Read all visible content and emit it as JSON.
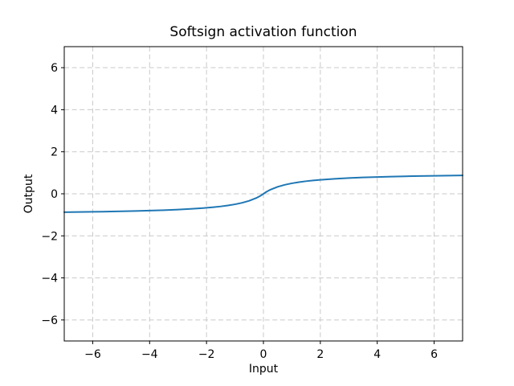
{
  "chart_data": {
    "type": "line",
    "title": "Softsign activation function",
    "xlabel": "Input",
    "ylabel": "Output",
    "xlim": [
      -7,
      7
    ],
    "ylim": [
      -7,
      7
    ],
    "xticks": [
      -6,
      -4,
      -2,
      0,
      2,
      4,
      6
    ],
    "xtick_labels": [
      "−6",
      "−4",
      "−2",
      "0",
      "2",
      "4",
      "6"
    ],
    "yticks": [
      -6,
      -4,
      -2,
      0,
      2,
      4,
      6
    ],
    "ytick_labels": [
      "−6",
      "−4",
      "−2",
      "0",
      "2",
      "4",
      "6"
    ],
    "grid": true,
    "grid_linestyle": "dashed",
    "grid_color": "#c9c9c9",
    "spine_color": "#000000",
    "line_color": "#1f77b4",
    "background": "#ffffff",
    "legend": null,
    "series": [
      {
        "name": "softsign",
        "x": [
          -7,
          -6.5,
          -6,
          -5.5,
          -5,
          -4.5,
          -4,
          -3.5,
          -3,
          -2.5,
          -2,
          -1.75,
          -1.5,
          -1.25,
          -1,
          -0.75,
          -0.5,
          -0.25,
          -0.1,
          0,
          0.1,
          0.25,
          0.5,
          0.75,
          1,
          1.25,
          1.5,
          1.75,
          2,
          2.5,
          3,
          3.5,
          4,
          4.5,
          5,
          5.5,
          6,
          6.5,
          7
        ],
        "y": [
          -0.875,
          -0.8667,
          -0.8571,
          -0.8462,
          -0.8333,
          -0.8182,
          -0.8,
          -0.7778,
          -0.75,
          -0.7143,
          -0.6667,
          -0.6364,
          -0.6,
          -0.5556,
          -0.5,
          -0.4286,
          -0.3333,
          -0.2,
          -0.0909,
          0,
          0.0909,
          0.2,
          0.3333,
          0.4286,
          0.5,
          0.5556,
          0.6,
          0.6364,
          0.6667,
          0.7143,
          0.75,
          0.7778,
          0.8,
          0.8182,
          0.8333,
          0.8462,
          0.8571,
          0.8667,
          0.875
        ]
      }
    ]
  }
}
